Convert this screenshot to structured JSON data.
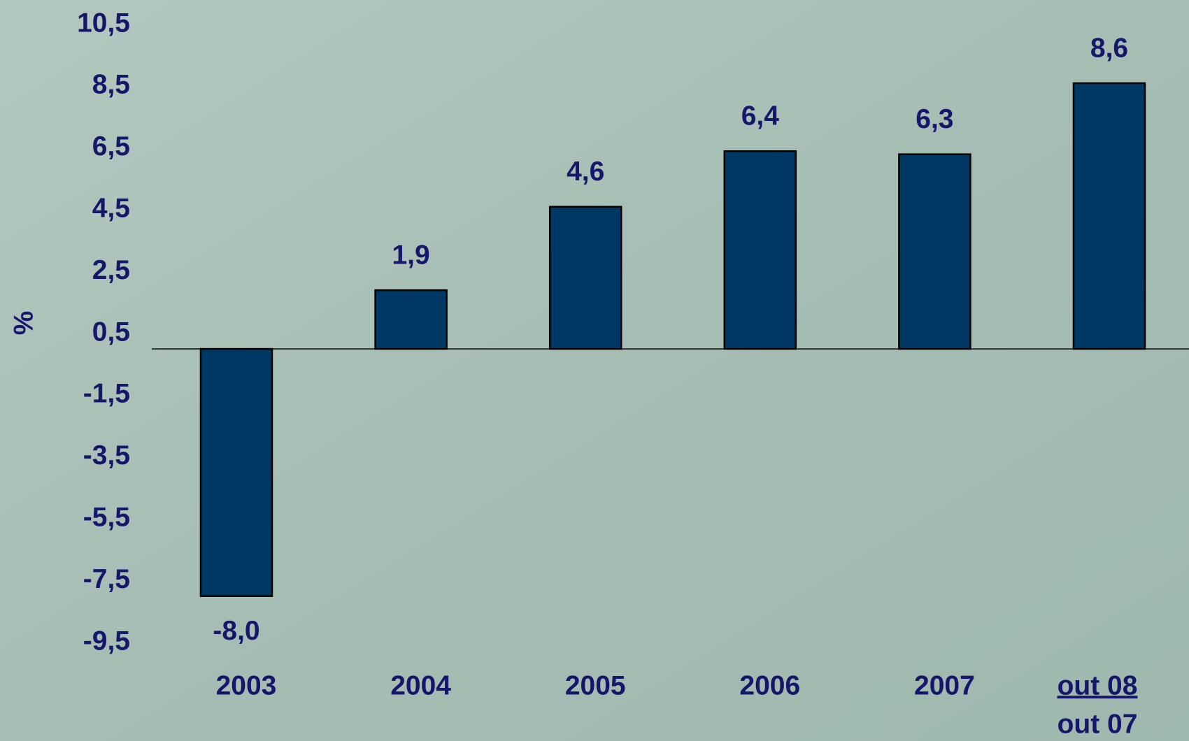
{
  "chart_data": {
    "type": "bar",
    "y_label": "%",
    "categories": [
      "2003",
      "2004",
      "2005",
      "2006",
      "2007",
      {
        "numerator": "out 08",
        "denominator": "out 07"
      }
    ],
    "values": [
      -8.0,
      1.9,
      4.6,
      6.4,
      6.3,
      8.6
    ],
    "value_labels": [
      "-8,0",
      "1,9",
      "4,6",
      "6,4",
      "6,3",
      "8,6"
    ],
    "color": "#003865",
    "ylim": [
      -9.5,
      10.5
    ],
    "yticks": [
      {
        "value": 10.5,
        "label": "10,5"
      },
      {
        "value": 8.5,
        "label": "8,5"
      },
      {
        "value": 6.5,
        "label": "6,5"
      },
      {
        "value": 4.5,
        "label": "4,5"
      },
      {
        "value": 2.5,
        "label": "2,5"
      },
      {
        "value": 0.5,
        "label": "0,5"
      },
      {
        "value": -1.5,
        "label": "-1,5"
      },
      {
        "value": -3.5,
        "label": "-3,5"
      },
      {
        "value": -5.5,
        "label": "-5,5"
      },
      {
        "value": -7.5,
        "label": "-7,5"
      },
      {
        "value": -9.5,
        "label": "-9,5"
      }
    ],
    "grid": false
  }
}
